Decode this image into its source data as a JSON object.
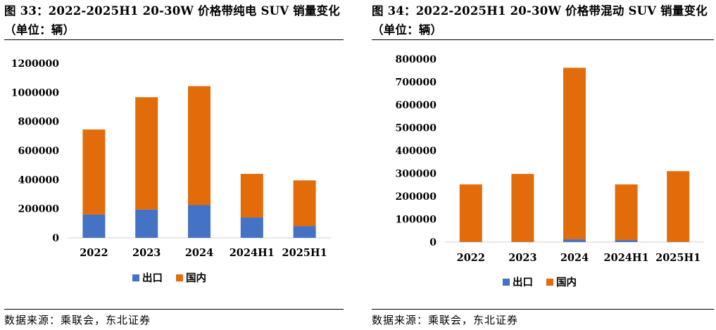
{
  "chart_data": [
    {
      "type": "bar",
      "stacked": true,
      "title": "图 33：2022-2025H1 20-30W 价格带纯电 SUV 销量变化（单位：辆）",
      "source": "数据来源：乘联会，东北证券",
      "categories": [
        "2022",
        "2023",
        "2024",
        "2024H1",
        "2025H1"
      ],
      "series": [
        {
          "name": "出口",
          "color": "#4472C4",
          "values": [
            160000,
            195000,
            225000,
            140000,
            80000
          ]
        },
        {
          "name": "国内",
          "color": "#E36C0A",
          "values": [
            585000,
            772000,
            818000,
            300000,
            315000
          ]
        }
      ],
      "ylim": [
        0,
        1200000
      ],
      "yticks": [
        "0",
        "200000",
        "400000",
        "600000",
        "800000",
        "1000000",
        "1200000"
      ],
      "grid": false,
      "legend": "bottom"
    },
    {
      "type": "bar",
      "stacked": true,
      "title": "图 34：2022-2025H1 20-30W 价格带混动 SUV 销量变化（单位：辆）",
      "source": "数据来源：乘联会，东北证券",
      "categories": [
        "2022",
        "2023",
        "2024",
        "2024H1",
        "2025H1"
      ],
      "series": [
        {
          "name": "出口",
          "color": "#4472C4",
          "values": [
            1000,
            1000,
            12000,
            9000,
            1000
          ]
        },
        {
          "name": "国内",
          "color": "#E36C0A",
          "values": [
            251000,
            297000,
            750000,
            243000,
            309000
          ]
        }
      ],
      "ylim": [
        0,
        800000
      ],
      "yticks": [
        "0",
        "100000",
        "200000",
        "300000",
        "400000",
        "500000",
        "600000",
        "700000",
        "800000"
      ],
      "grid": false,
      "legend": "bottom"
    }
  ]
}
